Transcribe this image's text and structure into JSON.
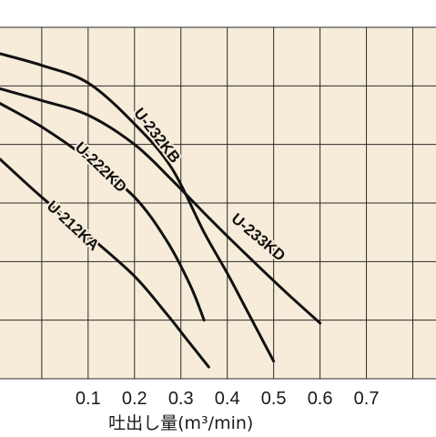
{
  "chart_data": {
    "type": "line",
    "xlabel": "吐出し量(m³/min)",
    "ylabel": "",
    "xlim": [
      -0.09,
      0.85
    ],
    "ylim": [
      0,
      6
    ],
    "x_ticks": [
      "0.1",
      "0.2",
      "0.3",
      "0.4",
      "0.5",
      "0.6",
      "0.7"
    ],
    "grid": true,
    "background_color": "#f6ecd9",
    "line_color": "#111111",
    "series": [
      {
        "name": "U-232KB",
        "points": [
          [
            -0.09,
            5.55
          ],
          [
            0.0,
            5.35
          ],
          [
            0.1,
            5.05
          ],
          [
            0.2,
            4.35
          ],
          [
            0.28,
            3.6
          ],
          [
            0.35,
            2.5
          ],
          [
            0.4,
            1.8
          ],
          [
            0.45,
            1.05
          ],
          [
            0.5,
            0.3
          ]
        ]
      },
      {
        "name": "U-233KD",
        "points": [
          [
            -0.09,
            4.95
          ],
          [
            0.0,
            4.75
          ],
          [
            0.1,
            4.5
          ],
          [
            0.2,
            4.0
          ],
          [
            0.28,
            3.4
          ],
          [
            0.36,
            2.75
          ],
          [
            0.45,
            2.05
          ],
          [
            0.53,
            1.45
          ],
          [
            0.6,
            0.95
          ]
        ]
      },
      {
        "name": "U-222KD",
        "points": [
          [
            -0.09,
            4.7
          ],
          [
            0.0,
            4.3
          ],
          [
            0.1,
            3.75
          ],
          [
            0.2,
            3.1
          ],
          [
            0.27,
            2.35
          ],
          [
            0.32,
            1.6
          ],
          [
            0.35,
            1.0
          ]
        ]
      },
      {
        "name": "U-212KA",
        "points": [
          [
            -0.09,
            3.75
          ],
          [
            0.0,
            3.1
          ],
          [
            0.1,
            2.45
          ],
          [
            0.2,
            1.75
          ],
          [
            0.27,
            1.1
          ],
          [
            0.31,
            0.7
          ],
          [
            0.36,
            0.2
          ]
        ]
      }
    ],
    "labels": [
      "U-232KB",
      "U-233KD",
      "U-222KD",
      "U-212KA"
    ]
  }
}
